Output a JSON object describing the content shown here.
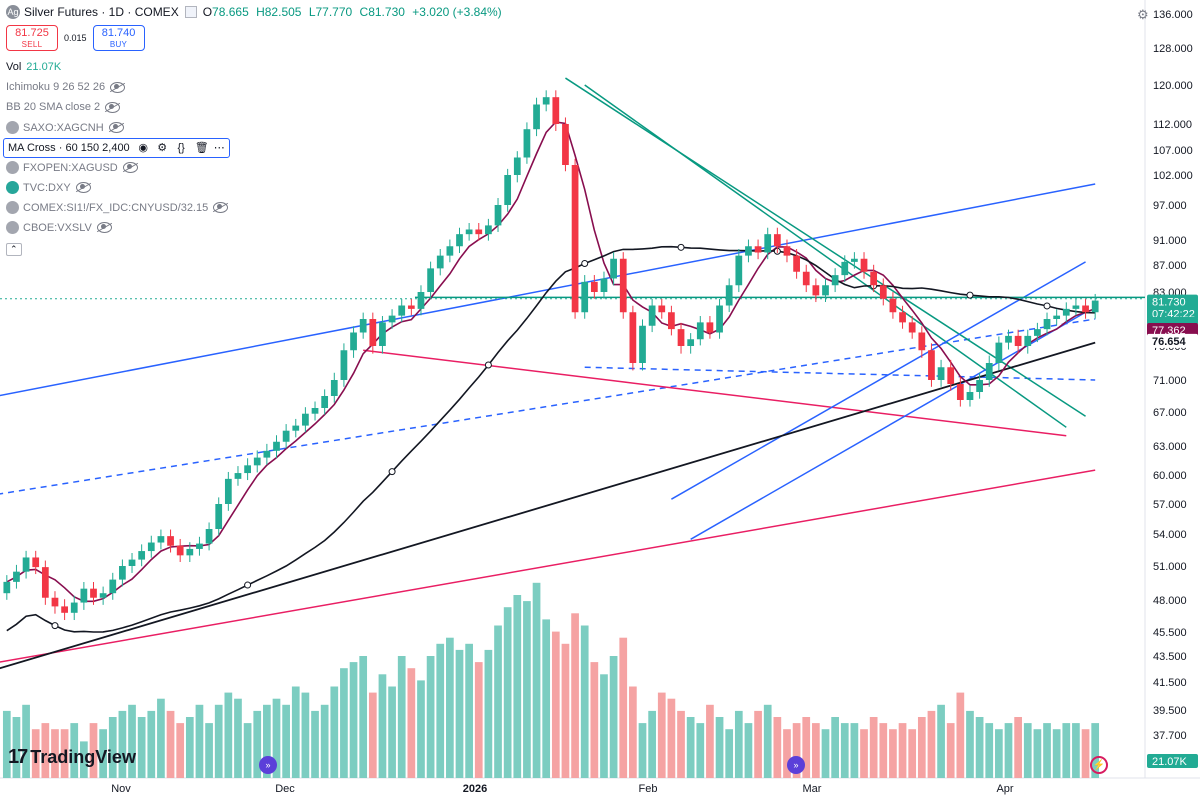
{
  "header": {
    "title": "Silver Futures · 1D · COMEX",
    "open": "78.665",
    "high": "H82.505",
    "low": "L77.770",
    "close": "C81.730",
    "change": "+3.020 (+3.84%)",
    "open_prefix": "O"
  },
  "trade": {
    "sell_price": "81.725",
    "sell_label": "SELL",
    "spread": "0.015",
    "buy_price": "81.740",
    "buy_label": "BUY"
  },
  "indicators": {
    "vol_label": "Vol",
    "vol_value": "21.07K",
    "ichimoku": "Ichimoku 9 26 52 26",
    "bb": "BB 20 SMA close 2",
    "saxo": "SAXO:XAGCNH",
    "ma_cross": "MA Cross · 60 150 2,400",
    "fxopen": "FXOPEN:XAGUSD",
    "dxy": "TVC:DXY",
    "comex": "COMEX:SI1!/FX_IDC:CNYUSD/32.15",
    "cboe": "CBOE:VXSLV"
  },
  "brand": {
    "name": "TradingView",
    "mark": "17"
  },
  "chart_data": {
    "type": "candlestick",
    "price_ticks": [
      "136.000",
      "128.000",
      "120.000",
      "112.000",
      "107.000",
      "102.000",
      "97.000",
      "91.000",
      "87.000",
      "83.000",
      "79.000",
      "75.000",
      "71.000",
      "67.000",
      "63.000",
      "60.000",
      "57.000",
      "54.000",
      "51.000",
      "48.000",
      "45.500",
      "43.500",
      "41.500",
      "39.500",
      "37.700"
    ],
    "x_ticks": [
      "Nov",
      "Dec",
      "2026",
      "Feb",
      "Mar",
      "Apr"
    ],
    "price_labels": [
      {
        "value": "81.730",
        "time": "07:42:22",
        "color": "#22ab94"
      },
      {
        "value": "77.362",
        "color": "#880e4f"
      },
      {
        "value": "76.654",
        "color": "#131722"
      },
      {
        "value": "79.00",
        "color": "#22ab94"
      }
    ],
    "volume_label": "21.07K",
    "volume_color": "#22ab94",
    "up_color": "#22ab94",
    "down_color": "#f23645",
    "up_volume_color": "#7ccdc1",
    "down_volume_color": "#f5a3a3",
    "horizontal_level": 82.2,
    "close_series": [
      49.6,
      50.5,
      51.8,
      50.9,
      48.2,
      47.5,
      47.0,
      47.8,
      49.0,
      48.2,
      48.6,
      49.8,
      51.0,
      51.6,
      52.4,
      53.2,
      53.8,
      52.9,
      52.0,
      52.6,
      53.1,
      54.5,
      57.0,
      59.6,
      60.2,
      61.0,
      61.8,
      62.5,
      63.5,
      64.8,
      65.4,
      66.8,
      67.5,
      69.0,
      71.0,
      74.5,
      77.0,
      79.0,
      75.0,
      78.5,
      79.5,
      81.0,
      80.5,
      83.0,
      86.5,
      88.5,
      90.0,
      92.0,
      92.8,
      92.0,
      93.5,
      97.0,
      102.0,
      105.5,
      111.0,
      116.0,
      117.5,
      112.0,
      104.0,
      80.0,
      84.5,
      83.0,
      85.0,
      88.0,
      80.0,
      73.0,
      78.0,
      81.0,
      80.0,
      77.5,
      75.0,
      76.0,
      78.5,
      77.0,
      81.0,
      84.0,
      88.5,
      90.0,
      89.0,
      92.0,
      90.0,
      88.5,
      86.0,
      84.0,
      82.5,
      84.0,
      85.5,
      87.5,
      88.0,
      86.0,
      84.0,
      82.0,
      80.0,
      78.5,
      77.0,
      74.5,
      71.0,
      72.5,
      70.5,
      68.5,
      69.5,
      71.0,
      73.0,
      75.5,
      76.5,
      75.0,
      76.5,
      77.5,
      79.0,
      79.5,
      80.5,
      81.0,
      80.0,
      81.73
    ],
    "volume_series": [
      11,
      10,
      12,
      8,
      9,
      8,
      8,
      9,
      6,
      9,
      8,
      10,
      11,
      12,
      10,
      11,
      13,
      11,
      9,
      10,
      12,
      9,
      12,
      14,
      13,
      9,
      11,
      12,
      13,
      12,
      15,
      14,
      11,
      12,
      15,
      18,
      19,
      20,
      14,
      17,
      15,
      20,
      18,
      16,
      20,
      22,
      23,
      21,
      22,
      19,
      21,
      25,
      28,
      30,
      29,
      32,
      26,
      24,
      22,
      27,
      25,
      19,
      17,
      20,
      23,
      15,
      9,
      11,
      14,
      13,
      11,
      10,
      9,
      12,
      10,
      8,
      11,
      9,
      11,
      12,
      10,
      8,
      9,
      10,
      9,
      8,
      10,
      9,
      9,
      8,
      10,
      9,
      8,
      9,
      8,
      10,
      11,
      12,
      9,
      14,
      11,
      10,
      9,
      8,
      9,
      10,
      9,
      8,
      9,
      8,
      9,
      9,
      8,
      9
    ]
  }
}
